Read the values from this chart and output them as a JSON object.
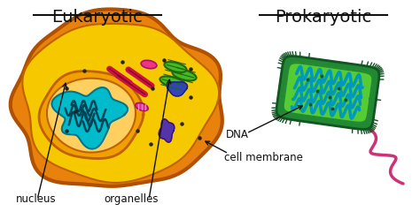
{
  "background_color": "#ffffff",
  "title_eukaryotic": "Eukaryotic",
  "title_prokaryotic": "Prokaryotic",
  "label_nucleus": "nucleus",
  "label_organelles": "organelles",
  "label_cell_membrane": "cell membrane",
  "label_dna": "DNA",
  "euk_outer_color": "#E8820C",
  "euk_outer_edge": "#B05000",
  "euk_inner_color": "#F5C800",
  "euk_inner_edge": "#C06000",
  "nuc_outer_color": "#F0A000",
  "nuc_inner_color": "#FFD060",
  "nuc_edge": "#C06000",
  "mito_fill": "#00BBCC",
  "mito_edge": "#007788",
  "mito_squiggle": "#004455",
  "er_color": "#CC1144",
  "er_edge": "#880022",
  "chloro_color": "#44BB22",
  "chloro_edge": "#226611",
  "purple_blob": "#5533AA",
  "pink_blob": "#DD3388",
  "dot_color": "#222222",
  "pro_outer_color": "#228833",
  "pro_outer_edge": "#115522",
  "pro_inner_color": "#55CC33",
  "pro_inner_edge": "#228833",
  "pro_dna_color": "#0099BB",
  "pro_dna_edge": "#005577",
  "flagellum_color": "#CC3377",
  "text_color": "#111111",
  "arrow_color": "#111111"
}
